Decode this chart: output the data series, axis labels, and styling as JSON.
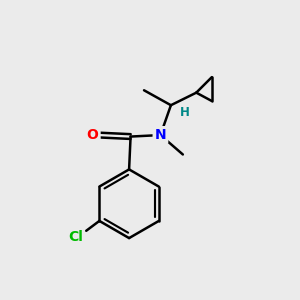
{
  "background_color": "#ebebeb",
  "bond_color": "#000000",
  "atom_colors": {
    "O": "#ff0000",
    "N": "#0000ff",
    "Cl": "#00bb00",
    "H": "#008888",
    "C": "#000000"
  },
  "figsize": [
    3.0,
    3.0
  ],
  "dpi": 100,
  "lw": 1.8
}
